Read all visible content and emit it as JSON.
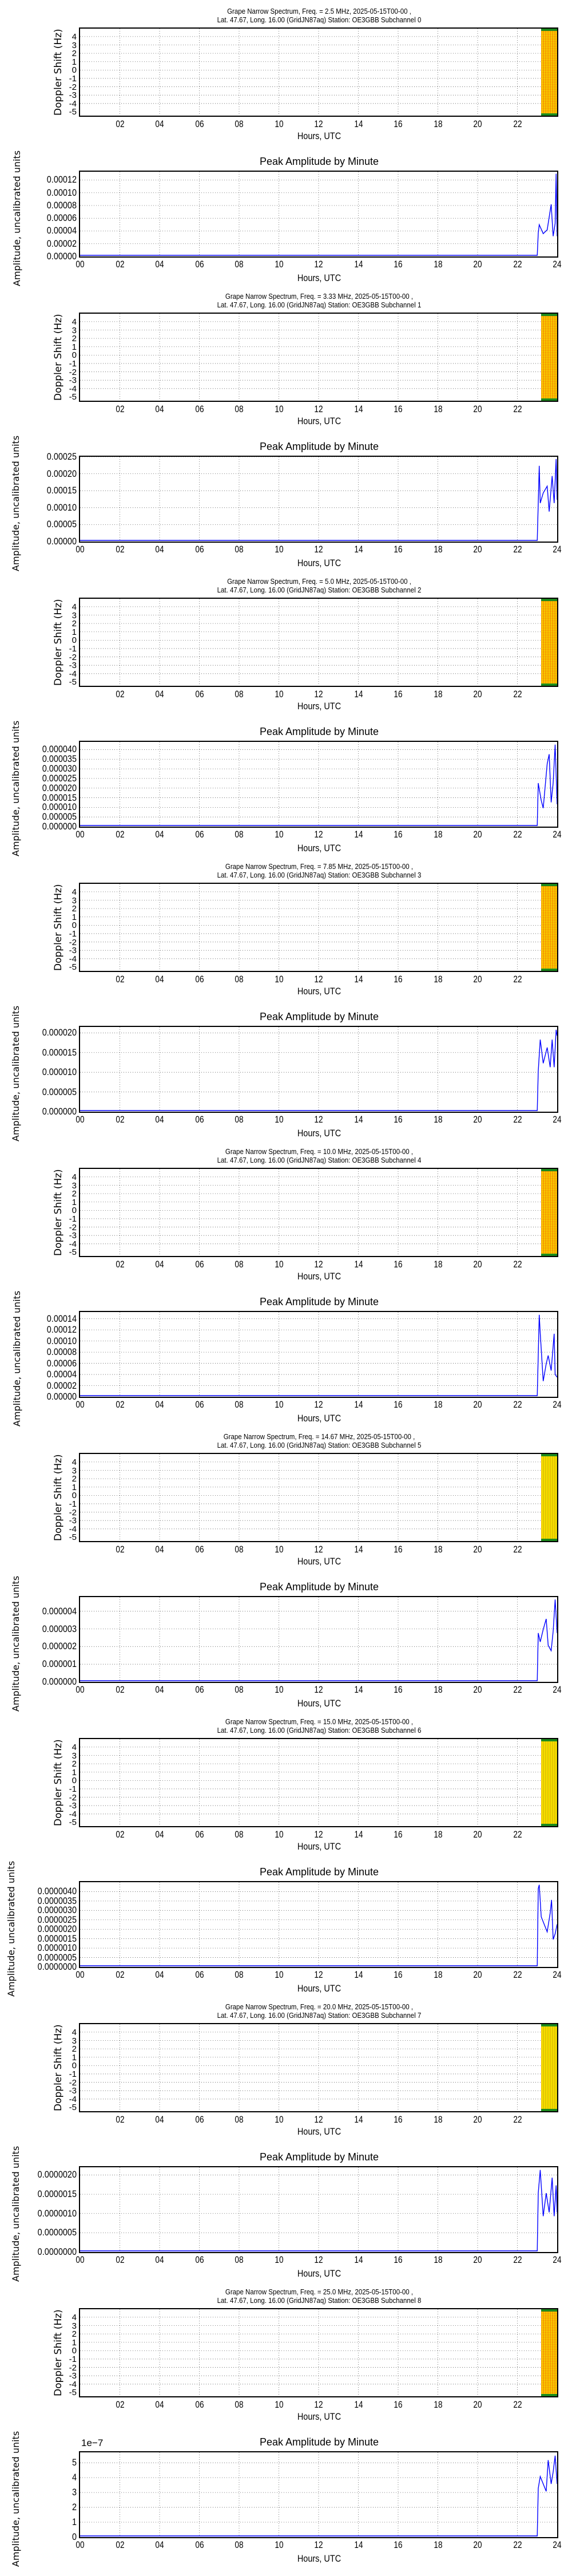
{
  "common": {
    "spec_ylabel": "Doppler Shift (Hz)",
    "amp_ylabel": "Amplitude, uncalibrated units",
    "xlabel": "Hours, UTC",
    "amp_title": "Peak Amplitude by Minute",
    "spec_xticks": [
      "02",
      "04",
      "06",
      "08",
      "10",
      "12",
      "14",
      "16",
      "18",
      "20",
      "22"
    ],
    "amp_xticks": [
      "00",
      "02",
      "04",
      "06",
      "08",
      "10",
      "12",
      "14",
      "16",
      "18",
      "20",
      "22",
      "24"
    ],
    "spec_yticks": [
      "4",
      "3",
      "2",
      "1",
      "0",
      "-1",
      "-2",
      "-3",
      "-4",
      "-5"
    ],
    "line_color": "#0000ff",
    "grid_style": "dotted"
  },
  "panels": [
    {
      "spec_title_1": "Grape Narrow Spectrum, Freq. = 2.5 MHz, 2025-05-15T00-00 ,",
      "spec_title_2": "Lat.  47.67, Long.  16.00 (GridJN87aq) Station: OE3GBB Subchannel 0",
      "amp_yticks": [
        "0.00012",
        "0.00010",
        "0.00008",
        "0.00006",
        "0.00004",
        "0.00002",
        "0.00000"
      ],
      "amp_exponent": ""
    },
    {
      "spec_title_1": "Grape Narrow Spectrum, Freq. = 3.33 MHz, 2025-05-15T00-00 ,",
      "spec_title_2": "Lat.  47.67, Long.  16.00 (GridJN87aq) Station: OE3GBB Subchannel 1",
      "amp_yticks": [
        "0.00025",
        "0.00020",
        "0.00015",
        "0.00010",
        "0.00005",
        "0.00000"
      ],
      "amp_exponent": ""
    },
    {
      "spec_title_1": "Grape Narrow Spectrum, Freq. = 5.0 MHz, 2025-05-15T00-00 ,",
      "spec_title_2": "Lat.  47.67, Long.  16.00 (GridJN87aq) Station: OE3GBB Subchannel 2",
      "amp_yticks": [
        "0.000040",
        "0.000035",
        "0.000030",
        "0.000025",
        "0.000020",
        "0.000015",
        "0.000010",
        "0.000005",
        "0.000000"
      ],
      "amp_exponent": ""
    },
    {
      "spec_title_1": "Grape Narrow Spectrum, Freq. = 7.85 MHz, 2025-05-15T00-00 ,",
      "spec_title_2": "Lat.  47.67, Long.  16.00 (GridJN87aq) Station: OE3GBB Subchannel 3",
      "amp_yticks": [
        "0.000020",
        "0.000015",
        "0.000010",
        "0.000005",
        "0.000000"
      ],
      "amp_exponent": ""
    },
    {
      "spec_title_1": "Grape Narrow Spectrum, Freq. = 10.0 MHz, 2025-05-15T00-00 ,",
      "spec_title_2": "Lat.  47.67, Long.  16.00 (GridJN87aq) Station: OE3GBB Subchannel 4",
      "amp_yticks": [
        "0.00014",
        "0.00012",
        "0.00010",
        "0.00008",
        "0.00006",
        "0.00004",
        "0.00002",
        "0.00000"
      ],
      "amp_exponent": ""
    },
    {
      "spec_title_1": "Grape Narrow Spectrum, Freq. = 14.67 MHz, 2025-05-15T00-00 ,",
      "spec_title_2": "Lat.  47.67, Long.  16.00 (GridJN87aq) Station: OE3GBB Subchannel 5",
      "amp_yticks": [
        "0.000004",
        "0.000003",
        "0.000002",
        "0.000001",
        "0.000000"
      ],
      "amp_exponent": ""
    },
    {
      "spec_title_1": "Grape Narrow Spectrum, Freq. = 15.0 MHz, 2025-05-15T00-00 ,",
      "spec_title_2": "Lat.  47.67, Long.  16.00 (GridJN87aq) Station: OE3GBB Subchannel 6",
      "amp_yticks": [
        "0.0000040",
        "0.0000035",
        "0.0000030",
        "0.0000025",
        "0.0000020",
        "0.0000015",
        "0.0000010",
        "0.0000005",
        "0.0000000"
      ],
      "amp_exponent": ""
    },
    {
      "spec_title_1": "Grape Narrow Spectrum, Freq. = 20.0 MHz, 2025-05-15T00-00 ,",
      "spec_title_2": "Lat.  47.67, Long.  16.00 (GridJN87aq) Station: OE3GBB Subchannel 7",
      "amp_yticks": [
        "0.0000020",
        "0.0000015",
        "0.0000010",
        "0.0000005",
        "0.0000000"
      ],
      "amp_exponent": ""
    },
    {
      "spec_title_1": "Grape Narrow Spectrum, Freq. = 25.0 MHz, 2025-05-15T00-00 ,",
      "spec_title_2": "Lat.  47.67, Long.  16.00 (GridJN87aq) Station: OE3GBB Subchannel 8",
      "amp_yticks": [
        "5",
        "4",
        "3",
        "2",
        "1",
        "0"
      ],
      "amp_exponent": "1e−7"
    }
  ],
  "chart_data": [
    {
      "type": "heatmap",
      "title": "Grape Narrow Spectrum, Freq. = 2.5 MHz, 2025-05-15T00-00 , Lat. 47.67, Long. 16.00 (GridJN87aq) Station: OE3GBB Subchannel 0",
      "xlabel": "Hours, UTC",
      "ylabel": "Doppler Shift (Hz)",
      "xlim": [
        0,
        24
      ],
      "ylim": [
        -5,
        5
      ],
      "data_extent_hours": [
        23.0,
        24.0
      ],
      "band_color": "orange"
    },
    {
      "type": "line",
      "title": "Peak Amplitude by Minute",
      "xlabel": "Hours, UTC",
      "ylabel": "Amplitude, uncalibrated units",
      "xlim": [
        0,
        24
      ],
      "ylim": [
        0,
        0.000133
      ],
      "x": [
        0,
        23.0,
        23.05,
        23.1,
        23.3,
        23.5,
        23.7,
        23.8,
        23.9,
        23.95,
        24.0
      ],
      "values": [
        0,
        0,
        3.5e-05,
        4.8e-05,
        3.4e-05,
        4e-05,
        8e-05,
        3e-05,
        5e-05,
        0.000128,
        3e-05
      ],
      "grid": true
    },
    {
      "type": "heatmap",
      "title": "Grape Narrow Spectrum, Freq. = 3.33 MHz, 2025-05-15T00-00 , Lat. 47.67, Long. 16.00 (GridJN87aq) Station: OE3GBB Subchannel 1",
      "xlabel": "Hours, UTC",
      "ylabel": "Doppler Shift (Hz)",
      "xlim": [
        0,
        24
      ],
      "ylim": [
        -5,
        5
      ],
      "data_extent_hours": [
        23.0,
        24.0
      ],
      "band_color": "orange"
    },
    {
      "type": "line",
      "title": "Peak Amplitude by Minute",
      "xlabel": "Hours, UTC",
      "ylabel": "Amplitude, uncalibrated units",
      "xlim": [
        0,
        24
      ],
      "ylim": [
        0,
        0.00025
      ],
      "x": [
        0,
        23.0,
        23.1,
        23.15,
        23.3,
        23.5,
        23.6,
        23.75,
        23.85,
        23.95,
        24.0
      ],
      "values": [
        0,
        0,
        0.00022,
        0.00011,
        0.00014,
        0.00016,
        8.5e-05,
        0.00019,
        0.00011,
        0.00024,
        0.00012
      ],
      "grid": true
    },
    {
      "type": "heatmap",
      "title": "Grape Narrow Spectrum, Freq. = 5.0 MHz, 2025-05-15T00-00 , Lat. 47.67, Long. 16.00 (GridJN87aq) Station: OE3GBB Subchannel 2",
      "xlabel": "Hours, UTC",
      "ylabel": "Doppler Shift (Hz)",
      "xlim": [
        0,
        24
      ],
      "ylim": [
        -5,
        5
      ],
      "data_extent_hours": [
        23.0,
        24.0
      ],
      "band_color": "orange"
    },
    {
      "type": "line",
      "title": "Peak Amplitude by Minute",
      "xlabel": "Hours, UTC",
      "ylabel": "Amplitude, uncalibrated units",
      "xlim": [
        0,
        24
      ],
      "ylim": [
        0,
        4.4e-05
      ],
      "x": [
        0,
        23.0,
        23.05,
        23.2,
        23.3,
        23.5,
        23.6,
        23.7,
        23.8,
        23.9,
        24.0
      ],
      "values": [
        0,
        0,
        2.2e-05,
        1.3e-05,
        9e-06,
        3.2e-05,
        3.7e-05,
        1.2e-05,
        2.2e-05,
        4.2e-05,
        1.1e-05
      ],
      "grid": true
    },
    {
      "type": "heatmap",
      "title": "Grape Narrow Spectrum, Freq. = 7.85 MHz, 2025-05-15T00-00 , Lat. 47.67, Long. 16.00 (GridJN87aq) Station: OE3GBB Subchannel 3",
      "xlabel": "Hours, UTC",
      "ylabel": "Doppler Shift (Hz)",
      "xlim": [
        0,
        24
      ],
      "ylim": [
        -5,
        5
      ],
      "data_extent_hours": [
        23.0,
        24.0
      ],
      "band_color": "orange"
    },
    {
      "type": "line",
      "title": "Peak Amplitude by Minute",
      "xlabel": "Hours, UTC",
      "ylabel": "Amplitude, uncalibrated units",
      "xlim": [
        0,
        24
      ],
      "ylim": [
        0,
        2.15e-05
      ],
      "x": [
        0,
        23.0,
        23.05,
        23.15,
        23.3,
        23.5,
        23.65,
        23.75,
        23.85,
        23.95,
        24.0
      ],
      "values": [
        0,
        0,
        1e-05,
        1.8e-05,
        1.2e-05,
        1.6e-05,
        1.1e-05,
        1.8e-05,
        1.1e-05,
        2.05e-05,
        1.9e-05
      ],
      "grid": true
    },
    {
      "type": "heatmap",
      "title": "Grape Narrow Spectrum, Freq. = 10.0 MHz, 2025-05-15T00-00 , Lat. 47.67, Long. 16.00 (GridJN87aq) Station: OE3GBB Subchannel 4",
      "xlabel": "Hours, UTC",
      "ylabel": "Doppler Shift (Hz)",
      "xlim": [
        0,
        24
      ],
      "ylim": [
        -5,
        5
      ],
      "data_extent_hours": [
        23.0,
        24.0
      ],
      "band_color": "orange"
    },
    {
      "type": "line",
      "title": "Peak Amplitude by Minute",
      "xlabel": "Hours, UTC",
      "ylabel": "Amplitude, uncalibrated units",
      "xlim": [
        0,
        24
      ],
      "ylim": [
        0,
        0.000152
      ],
      "x": [
        0,
        23.0,
        23.1,
        23.15,
        23.3,
        23.45,
        23.55,
        23.7,
        23.85,
        23.9,
        24.0
      ],
      "values": [
        0,
        0,
        0.000145,
        0.000112,
        2.6e-05,
        5.7e-05,
        7.2e-05,
        4.5e-05,
        0.000111,
        3.8e-05,
        3.3e-05
      ],
      "grid": true
    },
    {
      "type": "heatmap",
      "title": "Grape Narrow Spectrum, Freq. = 14.67 MHz, 2025-05-15T00-00 , Lat. 47.67, Long. 16.00 (GridJN87aq) Station: OE3GBB Subchannel 5",
      "xlabel": "Hours, UTC",
      "ylabel": "Doppler Shift (Hz)",
      "xlim": [
        0,
        24
      ],
      "ylim": [
        -5,
        5
      ],
      "data_extent_hours": [
        23.0,
        24.0
      ],
      "band_color": "yellow-orange"
    },
    {
      "type": "line",
      "title": "Peak Amplitude by Minute",
      "xlabel": "Hours, UTC",
      "ylabel": "Amplitude, uncalibrated units",
      "xlim": [
        0,
        24
      ],
      "ylim": [
        0,
        4.8e-06
      ],
      "x": [
        0,
        23.0,
        23.05,
        23.15,
        23.3,
        23.45,
        23.55,
        23.7,
        23.8,
        23.9,
        24.0
      ],
      "values": [
        0,
        0,
        2.7e-06,
        2.2e-06,
        2.9e-06,
        3.5e-06,
        2e-06,
        1.7e-06,
        2.8e-06,
        4.6e-06,
        2.7e-06
      ],
      "grid": true
    },
    {
      "type": "heatmap",
      "title": "Grape Narrow Spectrum, Freq. = 15.0 MHz, 2025-05-15T00-00 , Lat. 47.67, Long. 16.00 (GridJN87aq) Station: OE3GBB Subchannel 6",
      "xlabel": "Hours, UTC",
      "ylabel": "Doppler Shift (Hz)",
      "xlim": [
        0,
        24
      ],
      "ylim": [
        -5,
        5
      ],
      "data_extent_hours": [
        23.0,
        24.0
      ],
      "band_color": "yellow"
    },
    {
      "type": "line",
      "title": "Peak Amplitude by Minute",
      "xlabel": "Hours, UTC",
      "ylabel": "Amplitude, uncalibrated units",
      "xlim": [
        0,
        24
      ],
      "ylim": [
        0,
        4.5e-06
      ],
      "x": [
        0,
        23.0,
        23.05,
        23.1,
        23.2,
        23.35,
        23.5,
        23.65,
        23.72,
        23.8,
        23.9,
        24.0
      ],
      "values": [
        0,
        0,
        4.1e-06,
        4.3e-06,
        2.6e-06,
        2.2e-06,
        1.8e-06,
        2.8e-06,
        3.5e-06,
        1.4e-06,
        1.7e-06,
        2.2e-06
      ],
      "grid": true
    },
    {
      "type": "heatmap",
      "title": "Grape Narrow Spectrum, Freq. = 20.0 MHz, 2025-05-15T00-00 , Lat. 47.67, Long. 16.00 (GridJN87aq) Station: OE3GBB Subchannel 7",
      "xlabel": "Hours, UTC",
      "ylabel": "Doppler Shift (Hz)",
      "xlim": [
        0,
        24
      ],
      "ylim": [
        -5,
        5
      ],
      "data_extent_hours": [
        23.0,
        24.0
      ],
      "band_color": "yellow"
    },
    {
      "type": "line",
      "title": "Peak Amplitude by Minute",
      "xlabel": "Hours, UTC",
      "ylabel": "Amplitude, uncalibrated units",
      "xlim": [
        0,
        24
      ],
      "ylim": [
        0,
        2.2e-06
      ],
      "x": [
        0,
        23.0,
        23.05,
        23.15,
        23.3,
        23.45,
        23.6,
        23.75,
        23.85,
        23.95,
        24.0
      ],
      "values": [
        0,
        0,
        1.5e-06,
        2.1e-06,
        9e-07,
        1.5e-06,
        1e-06,
        1.9e-06,
        9e-07,
        1.7e-06,
        1e-06
      ],
      "grid": true
    },
    {
      "type": "heatmap",
      "title": "Grape Narrow Spectrum, Freq. = 25.0 MHz, 2025-05-15T00-00 , Lat. 47.67, Long. 16.00 (GridJN87aq) Station: OE3GBB Subchannel 8",
      "xlabel": "Hours, UTC",
      "ylabel": "Doppler Shift (Hz)",
      "xlim": [
        0,
        24
      ],
      "ylim": [
        -5,
        5
      ],
      "data_extent_hours": [
        23.0,
        24.0
      ],
      "band_color": "yellow-orange"
    },
    {
      "type": "line",
      "title": "Peak Amplitude by Minute",
      "xlabel": "Hours, UTC",
      "ylabel": "Amplitude, uncalibrated units (1e-7)",
      "xlim": [
        0,
        24
      ],
      "ylim": [
        0,
        5.7
      ],
      "x": [
        0,
        23.0,
        23.05,
        23.15,
        23.3,
        23.45,
        23.55,
        23.7,
        23.8,
        23.9,
        24.0
      ],
      "values": [
        0,
        0,
        3.2,
        4.0,
        3.5,
        3.0,
        5.1,
        3.5,
        4.3,
        5.4,
        3.5
      ],
      "grid": true
    }
  ]
}
